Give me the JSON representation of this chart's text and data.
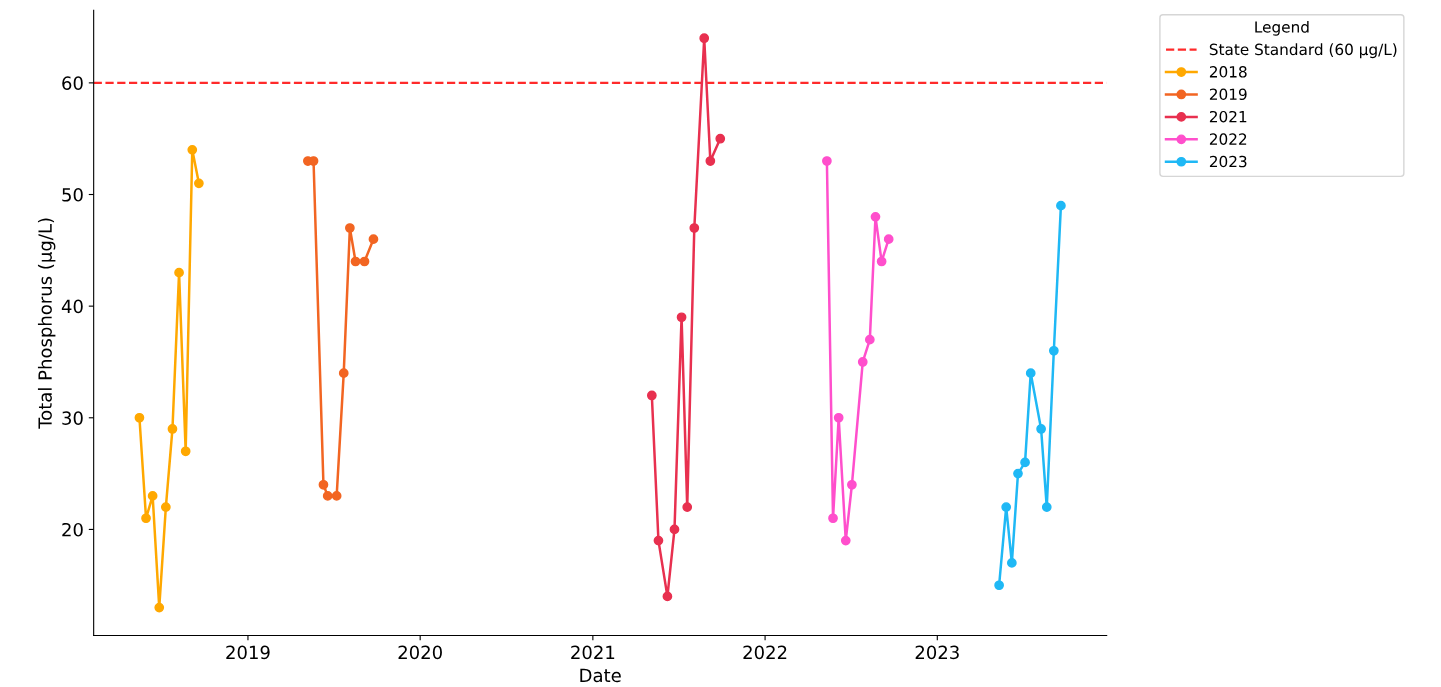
{
  "chart_data": {
    "type": "line",
    "xlabel": "Date",
    "ylabel": "Total Phosphorus (µg/L)",
    "legend_title": "Legend",
    "legend": "top right",
    "marker": "circle",
    "line_style": "solid",
    "grid": false,
    "xlim": [
      "2018-02-08",
      "2023-12-26"
    ],
    "xticks": [
      {
        "value": "2019-01-01",
        "label": "2019"
      },
      {
        "value": "2020-01-01",
        "label": "2020"
      },
      {
        "value": "2021-01-01",
        "label": "2021"
      },
      {
        "value": "2022-01-01",
        "label": "2022"
      },
      {
        "value": "2023-01-01",
        "label": "2023"
      }
    ],
    "ylim": [
      10.5,
      66.5
    ],
    "yticks": [
      20,
      30,
      40,
      50,
      60
    ],
    "ref_lines": [
      {
        "axis": "y",
        "value": 60,
        "label": "State Standard (60 µg/L)",
        "color": "#ff2a2a",
        "line_style": "dashed"
      }
    ],
    "series": [
      {
        "name": "2018",
        "color": "#ffa800",
        "x": [
          "2018-05-16",
          "2018-05-30",
          "2018-06-13",
          "2018-06-27",
          "2018-07-11",
          "2018-07-25",
          "2018-08-08",
          "2018-08-22",
          "2018-09-05",
          "2018-09-19"
        ],
        "values": [
          30,
          21,
          23,
          13,
          22,
          29,
          43,
          27,
          54,
          51
        ]
      },
      {
        "name": "2019",
        "color": "#f26522",
        "x": [
          "2019-05-08",
          "2019-05-20",
          "2019-06-10",
          "2019-06-19",
          "2019-07-08",
          "2019-07-23",
          "2019-08-05",
          "2019-08-17",
          "2019-09-05",
          "2019-09-24"
        ],
        "values": [
          53,
          53,
          24,
          23,
          23,
          34,
          47,
          44,
          44,
          46
        ]
      },
      {
        "name": "2021",
        "color": "#e8304f",
        "x": [
          "2021-05-06",
          "2021-05-20",
          "2021-06-08",
          "2021-06-23",
          "2021-07-08",
          "2021-07-20",
          "2021-08-04",
          "2021-08-25",
          "2021-09-07",
          "2021-09-28"
        ],
        "values": [
          32,
          19,
          14,
          20,
          39,
          22,
          47,
          64,
          53,
          55
        ]
      },
      {
        "name": "2022",
        "color": "#ff4fcc",
        "x": [
          "2022-05-12",
          "2022-05-25",
          "2022-06-06",
          "2022-06-21",
          "2022-07-04",
          "2022-07-27",
          "2022-08-11",
          "2022-08-23",
          "2022-09-05",
          "2022-09-20"
        ],
        "values": [
          53,
          21,
          30,
          19,
          24,
          35,
          37,
          48,
          44,
          46
        ]
      },
      {
        "name": "2023",
        "color": "#1fb8f5",
        "x": [
          "2023-05-12",
          "2023-05-27",
          "2023-06-08",
          "2023-06-21",
          "2023-07-06",
          "2023-07-18",
          "2023-08-09",
          "2023-08-21",
          "2023-09-05",
          "2023-09-20"
        ],
        "values": [
          15,
          22,
          17,
          25,
          26,
          34,
          29,
          22,
          36,
          49
        ]
      }
    ]
  }
}
